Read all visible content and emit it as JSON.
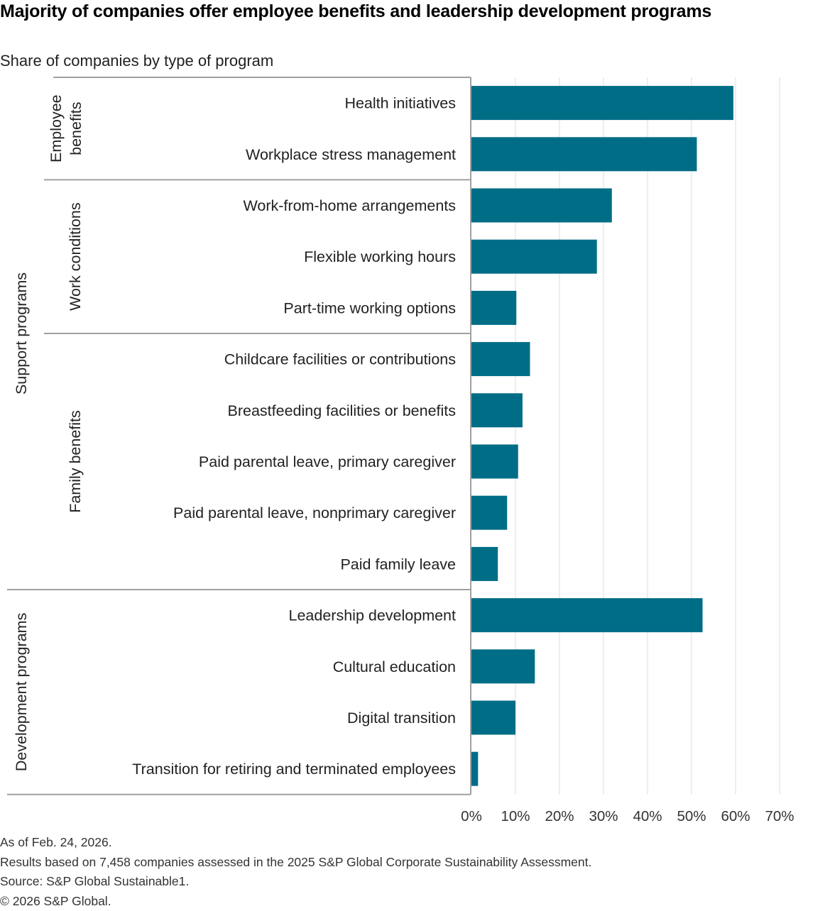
{
  "title": "Majority of companies offer employee benefits and leadership development programs",
  "subtitle": "Share of companies by type of program",
  "colors": {
    "bar": "#006d87",
    "grid": "#e3e3e3",
    "axis": "#a0a0a0",
    "text": "#222222"
  },
  "chart_data": {
    "type": "bar",
    "orientation": "horizontal",
    "title": "Majority of companies offer employee benefits and leadership development programs",
    "subtitle": "Share of companies by type of program",
    "xlabel": "",
    "ylabel": "",
    "xlim": [
      0,
      70
    ],
    "x_ticks": [
      "0%",
      "10%",
      "20%",
      "30%",
      "40%",
      "50%",
      "60%",
      "70%"
    ],
    "x_tick_values": [
      0,
      10,
      20,
      30,
      40,
      50,
      60,
      70
    ],
    "grid": "vertical",
    "legend": "none",
    "unit": "%",
    "categories": [
      "Health initiatives",
      "Workplace stress management",
      "Work-from-home arrangements",
      "Flexible working hours",
      "Part-time working options",
      "Childcare facilities or contributions",
      "Breastfeeding facilities or benefits",
      "Paid parental leave, primary caregiver",
      "Paid parental leave, nonprimary caregiver",
      "Paid family leave",
      "Leadership development",
      "Cultural education",
      "Digital transition",
      "Transition for retiring and terminated employees"
    ],
    "values": [
      59.5,
      51.2,
      31.9,
      28.5,
      10.2,
      13.3,
      11.6,
      10.6,
      8.1,
      6.0,
      52.5,
      14.4,
      10.0,
      1.5
    ],
    "groups": [
      {
        "name": "Support programs",
        "level": 1,
        "start": 0,
        "end": 9
      },
      {
        "name": "Employee benefits",
        "level": 2,
        "start": 0,
        "end": 1
      },
      {
        "name": "Work conditions",
        "level": 2,
        "start": 2,
        "end": 4
      },
      {
        "name": "Family benefits",
        "level": 2,
        "start": 5,
        "end": 9
      },
      {
        "name": "Development programs",
        "level": 1,
        "start": 10,
        "end": 13
      }
    ]
  },
  "footer": {
    "lines": [
      "As of Feb. 24, 2026.",
      "Results based on 7,458 companies assessed in the 2025 S&P Global Corporate Sustainability Assessment.",
      "Source: S&P Global Sustainable1.",
      "© 2026 S&P Global."
    ]
  }
}
